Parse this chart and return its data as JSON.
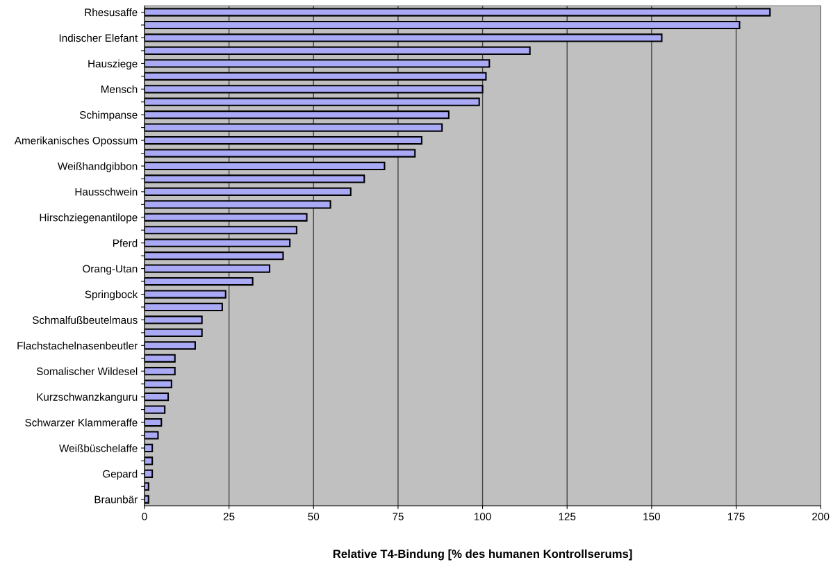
{
  "chart_data": {
    "type": "bar",
    "orientation": "horizontal",
    "xlabel": "Relative T4-Bindung [% des humanen Kontrollserums]",
    "categories": [
      "Rhesusaffe",
      null,
      "Indischer Elefant",
      null,
      "Hausziege",
      null,
      "Mensch",
      null,
      "Schimpanse",
      null,
      "Amerikanisches Opossum",
      null,
      "Weißhandgibbon",
      null,
      "Hausschwein",
      null,
      "Hirschziegenantilope",
      null,
      "Pferd",
      null,
      "Orang-Utan",
      null,
      "Springbock",
      null,
      "Schmalfußbeutelmaus",
      null,
      "Flachstachelnasenbeutler",
      null,
      "Somalischer Wildesel",
      null,
      "Kurzschwanzkanguru",
      null,
      "Schwarzer Klammeraffe",
      null,
      "Weißbüschelaffe",
      null,
      "Gepard",
      null,
      "Braunbär"
    ],
    "values": [
      185,
      176,
      153,
      114,
      102,
      101,
      100,
      99,
      90,
      88,
      82,
      80,
      71,
      65,
      61,
      55,
      48,
      45,
      43,
      41,
      37,
      32,
      24,
      23,
      17,
      17,
      15,
      9,
      9,
      8,
      7,
      6,
      5,
      4,
      2.3,
      2.3,
      2.3,
      1.2,
      1.2
    ],
    "color": "#a9a9f5",
    "xlim": [
      0,
      200
    ],
    "xticks": [
      0,
      25,
      50,
      75,
      100,
      125,
      150,
      175,
      200
    ],
    "grid": "x"
  }
}
